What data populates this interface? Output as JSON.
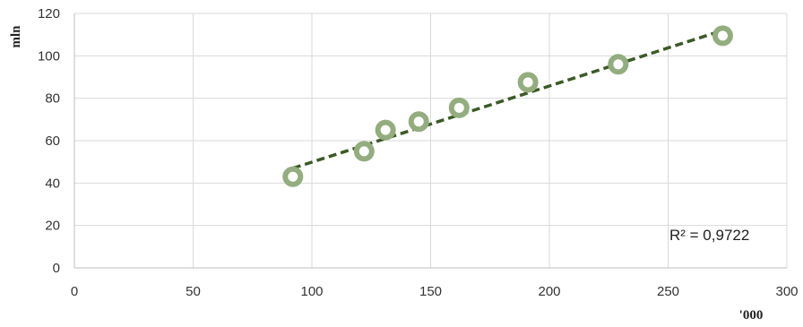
{
  "chart_data": {
    "type": "scatter",
    "title": "",
    "xlabel": "'000",
    "ylabel": "mln",
    "xlim": [
      0,
      300
    ],
    "ylim": [
      0,
      120
    ],
    "xticks": [
      0,
      50,
      100,
      150,
      200,
      250,
      300
    ],
    "yticks": [
      0,
      20,
      40,
      60,
      80,
      100,
      120
    ],
    "grid": true,
    "points": [
      {
        "x": 92,
        "y": 43
      },
      {
        "x": 122,
        "y": 55
      },
      {
        "x": 131,
        "y": 65
      },
      {
        "x": 145,
        "y": 69
      },
      {
        "x": 162,
        "y": 75.5
      },
      {
        "x": 191,
        "y": 87.5
      },
      {
        "x": 229,
        "y": 96
      },
      {
        "x": 273,
        "y": 109.5
      }
    ],
    "trendline": {
      "type": "linear",
      "style": "dashed",
      "x_range": [
        92,
        273
      ],
      "y_start": 47,
      "y_end": 112
    },
    "r_squared_label": "R² = 0,9722",
    "colors": {
      "marker": "#93ad7f",
      "trendline": "#3b5a26",
      "grid": "#d9d9d9",
      "axis": "#bfbfbf"
    }
  }
}
